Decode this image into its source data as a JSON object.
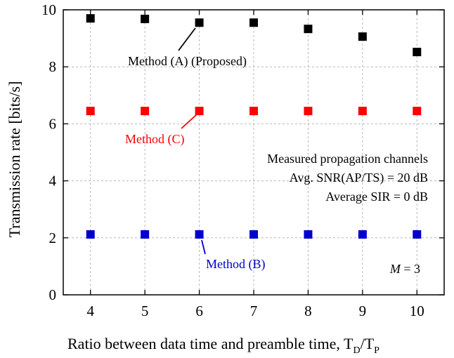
{
  "chart_data": {
    "type": "scatter",
    "x": [
      4,
      5,
      6,
      7,
      8,
      9,
      10
    ],
    "xlim": [
      3.5,
      10.5
    ],
    "ylim": [
      0,
      10
    ],
    "xticks": [
      "4",
      "5",
      "6",
      "7",
      "8",
      "9",
      "10"
    ],
    "yticks": [
      "0",
      "2",
      "4",
      "6",
      "8",
      "10"
    ],
    "grid": true,
    "xlabel": "Ratio between data time and preamble time, T",
    "xlabel_sub1": "D",
    "xlabel_mid": "/T",
    "xlabel_sub2": "P",
    "ylabel": "Transmission rate [bits/s]",
    "series": [
      {
        "name": "Method (A) (Proposed)",
        "color": "#000000",
        "values": [
          9.7,
          9.68,
          9.55,
          9.55,
          9.33,
          9.06,
          8.52
        ]
      },
      {
        "name": "Method (C)",
        "color": "#ff0000",
        "values": [
          6.45,
          6.45,
          6.45,
          6.45,
          6.45,
          6.45,
          6.45
        ]
      },
      {
        "name": "Method (B)",
        "color": "#0000cc",
        "values": [
          2.12,
          2.12,
          2.12,
          2.12,
          2.12,
          2.12,
          2.12
        ]
      }
    ],
    "annotations": {
      "info_line1": "Measured propagation channels",
      "info_line2": "Avg. SNR(AP/TS) = 20 dB",
      "info_line3": "Average SIR = 0 dB",
      "m_symbol": "M",
      "m_value": " = 3"
    }
  }
}
